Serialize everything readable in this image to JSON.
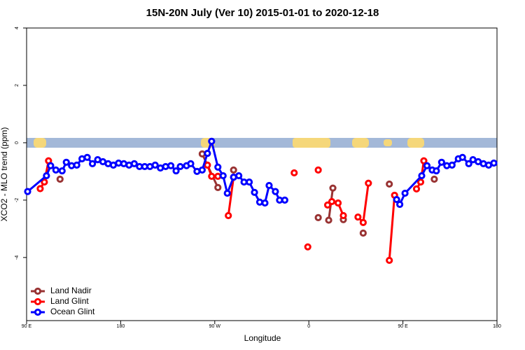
{
  "chart_data": {
    "type": "line",
    "title": "15N-20N July (Ver 10)   2015-01-01 to 2020-12-18",
    "x_label": "Longitude",
    "y_label": "XCO2 - MLO trend (ppm)",
    "xlim": [
      90,
      540
    ],
    "ylim": [
      -6.2,
      4
    ],
    "xticks": [
      {
        "value": 90,
        "label": "90 E"
      },
      180,
      {
        "value": 270,
        "label": "90 W"
      },
      {
        "value": 360,
        "label": "0"
      },
      {
        "value": 450,
        "label": "90 E"
      },
      {
        "value": 540,
        "label": "180"
      }
    ],
    "yticks": [
      -4,
      -2,
      0,
      2,
      4
    ],
    "legend": "bottomleft",
    "series": [
      {
        "name": "Land Nadir",
        "color": "#993333",
        "x": [
          122,
          null,
          258,
          273,
          null,
          288,
          null,
          369,
          null,
          379,
          383,
          null,
          393,
          null,
          412,
          null,
          437,
          null,
          480
        ],
        "values": [
          -1.27,
          null,
          -0.39,
          -1.56,
          null,
          -0.95,
          null,
          -2.61,
          null,
          -2.7,
          -1.58,
          null,
          -2.68,
          null,
          -3.15,
          null,
          -1.44,
          null,
          -1.27
        ]
      },
      {
        "name": "Land Glint",
        "color": "#ff0000",
        "x": [
          103,
          107,
          111,
          null,
          263,
          267,
          273,
          null,
          283,
          288,
          null,
          346,
          null,
          359,
          null,
          369,
          null,
          378,
          382,
          388,
          393,
          null,
          407,
          412,
          417,
          null,
          437,
          442,
          null,
          463,
          467,
          470
        ],
        "values": [
          -1.6,
          -1.37,
          -0.63,
          null,
          -0.78,
          -1.17,
          -1.17,
          null,
          -2.54,
          -1.2,
          null,
          -1.05,
          null,
          -3.63,
          null,
          -0.95,
          null,
          -2.17,
          -2.05,
          -2.1,
          -2.54,
          null,
          -2.59,
          -2.78,
          -1.41,
          null,
          -4.1,
          -1.83,
          null,
          -1.61,
          -1.37,
          -0.63
        ]
      },
      {
        "name": "Ocean Glint",
        "color": "#0000ff",
        "x": [
          91,
          109,
          113,
          118,
          124,
          128,
          133,
          138,
          143,
          148,
          153,
          158,
          163,
          168,
          173,
          178,
          183,
          188,
          193,
          198,
          203,
          208,
          213,
          218,
          223,
          228,
          233,
          237,
          243,
          247,
          253,
          258,
          263,
          267,
          273,
          278,
          282,
          288,
          293,
          298,
          303,
          308,
          313,
          318,
          322,
          328,
          332,
          337,
          null,
          444,
          447,
          452,
          468,
          473,
          478,
          482,
          487,
          492,
          497,
          503,
          507,
          513,
          517,
          522,
          527,
          532,
          537
        ],
        "values": [
          -1.7,
          -1.15,
          -0.8,
          -0.95,
          -0.98,
          -0.68,
          -0.8,
          -0.78,
          -0.56,
          -0.51,
          -0.73,
          -0.59,
          -0.66,
          -0.73,
          -0.78,
          -0.71,
          -0.73,
          -0.78,
          -0.73,
          -0.83,
          -0.83,
          -0.83,
          -0.78,
          -0.88,
          -0.83,
          -0.8,
          -0.98,
          -0.83,
          -0.8,
          -0.73,
          -1.0,
          -0.95,
          -0.37,
          0.05,
          -0.85,
          -1.15,
          -1.76,
          -1.2,
          -1.15,
          -1.37,
          -1.37,
          -1.73,
          -2.07,
          -2.1,
          -1.49,
          -1.7,
          -2.0,
          -2.0,
          null,
          -1.98,
          -2.15,
          -1.76,
          -1.15,
          -0.8,
          -0.95,
          -0.98,
          -0.68,
          -0.8,
          -0.78,
          -0.56,
          -0.51,
          -0.73,
          -0.59,
          -0.66,
          -0.73,
          -0.78,
          -0.71
        ]
      }
    ]
  }
}
